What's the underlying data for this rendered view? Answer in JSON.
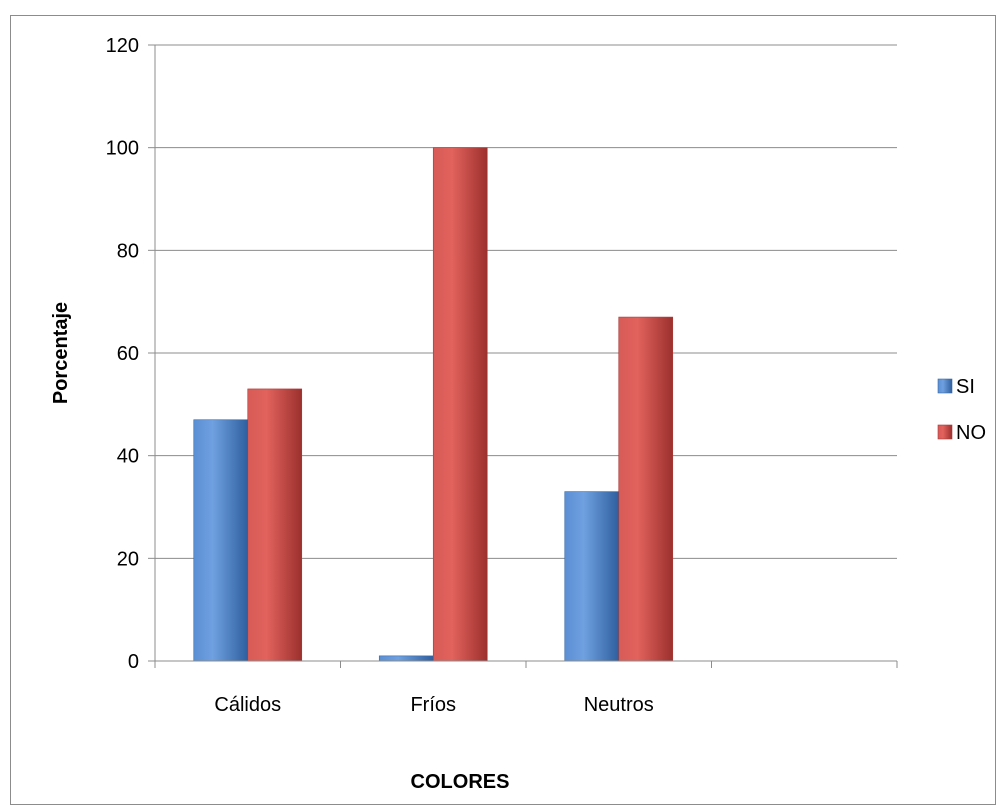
{
  "chart_data": {
    "type": "bar",
    "categories": [
      "Cálidos",
      "Fríos",
      "Neutros"
    ],
    "series": [
      {
        "name": "SI",
        "values": [
          47,
          1,
          33
        ],
        "color": "#4a7ebb"
      },
      {
        "name": "NO",
        "values": [
          53,
          100,
          67
        ],
        "color": "#c0504d"
      }
    ],
    "xlabel": "COLORES",
    "ylabel": "Porcentaje",
    "ylim": [
      0,
      120
    ],
    "yticks": [
      0,
      20,
      40,
      60,
      80,
      100,
      120
    ],
    "grid": true,
    "legend_position": "right"
  }
}
